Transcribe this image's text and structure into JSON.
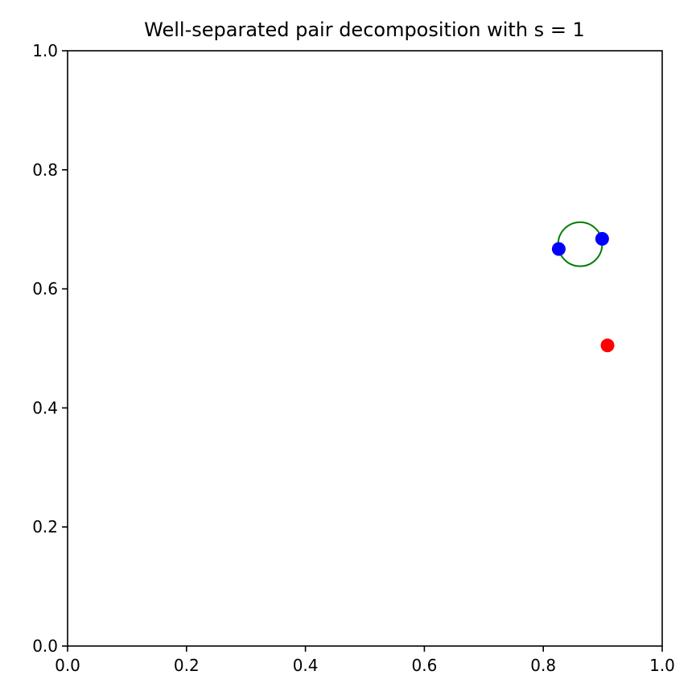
{
  "chart_data": {
    "type": "scatter",
    "title": "Well-separated pair decomposition with s = 1",
    "xlabel": "",
    "ylabel": "",
    "xlim": [
      0.0,
      1.0
    ],
    "ylim": [
      0.0,
      1.0
    ],
    "xticks": [
      "0.0",
      "0.2",
      "0.4",
      "0.6",
      "0.8",
      "1.0"
    ],
    "yticks": [
      "0.0",
      "0.2",
      "0.4",
      "0.6",
      "0.8",
      "1.0"
    ],
    "grid": false,
    "legend": "none",
    "series": [
      {
        "color": "#0000ff",
        "points": [
          {
            "x": 0.826,
            "y": 0.667
          },
          {
            "x": 0.899,
            "y": 0.684
          }
        ]
      },
      {
        "color": "#ff0000",
        "points": [
          {
            "x": 0.908,
            "y": 0.505
          }
        ]
      }
    ],
    "circles": [
      {
        "color": "#008000",
        "center": {
          "x": 0.862,
          "y": 0.675
        },
        "radius": 0.037
      }
    ]
  }
}
